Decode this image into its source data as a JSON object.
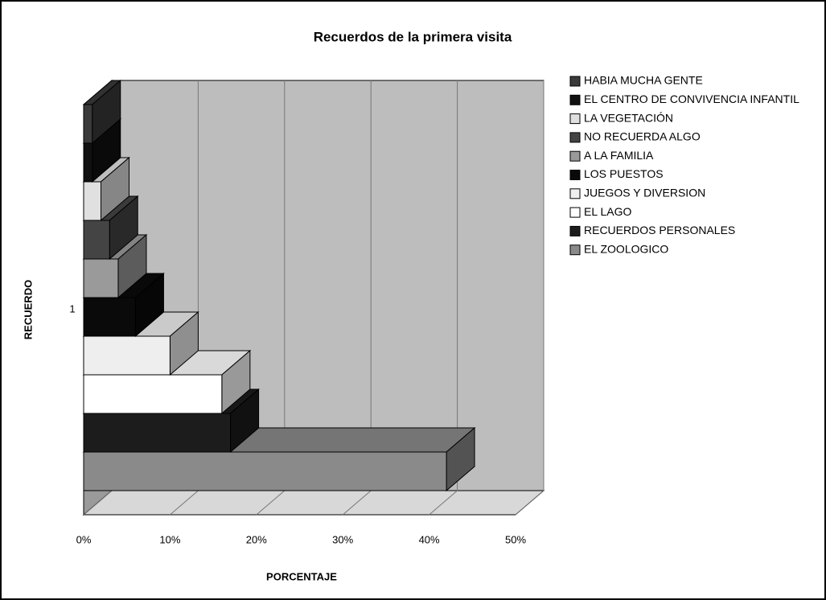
{
  "chart_data": {
    "type": "bar3d_horizontal",
    "title": "Recuerdos de la primera visita",
    "xlabel": "PORCENTAJE",
    "ylabel": "RECUERDO",
    "categories": [
      "1"
    ],
    "xlim": [
      0,
      50
    ],
    "xticks": [
      {
        "value": 0,
        "label": "0%"
      },
      {
        "value": 10,
        "label": "10%"
      },
      {
        "value": 20,
        "label": "20%"
      },
      {
        "value": 30,
        "label": "30%"
      },
      {
        "value": 40,
        "label": "40%"
      },
      {
        "value": 50,
        "label": "50%"
      }
    ],
    "grid": true,
    "legend": "right",
    "series": [
      {
        "name": "HABIA MUCHA GENTE",
        "color": "#3a3a3a",
        "values": [
          1
        ]
      },
      {
        "name": "EL CENTRO DE CONVIVENCIA INFANTIL",
        "color": "#111111",
        "values": [
          1
        ]
      },
      {
        "name": "LA VEGETACIÓN",
        "color": "#e0e0e0",
        "values": [
          2
        ]
      },
      {
        "name": "NO RECUERDA ALGO",
        "color": "#444444",
        "values": [
          3
        ]
      },
      {
        "name": "A LA FAMILIA",
        "color": "#9a9a9a",
        "values": [
          4
        ]
      },
      {
        "name": "LOS PUESTOS",
        "color": "#0a0a0a",
        "values": [
          6
        ]
      },
      {
        "name": "JUEGOS Y DIVERSION",
        "color": "#eeeeee",
        "values": [
          10
        ]
      },
      {
        "name": "EL LAGO",
        "color": "#ffffff",
        "values": [
          16
        ]
      },
      {
        "name": "RECUERDOS PERSONALES",
        "color": "#1c1c1c",
        "values": [
          17
        ]
      },
      {
        "name": "EL ZOOLOGICO",
        "color": "#8a8a8a",
        "values": [
          42
        ]
      }
    ]
  }
}
